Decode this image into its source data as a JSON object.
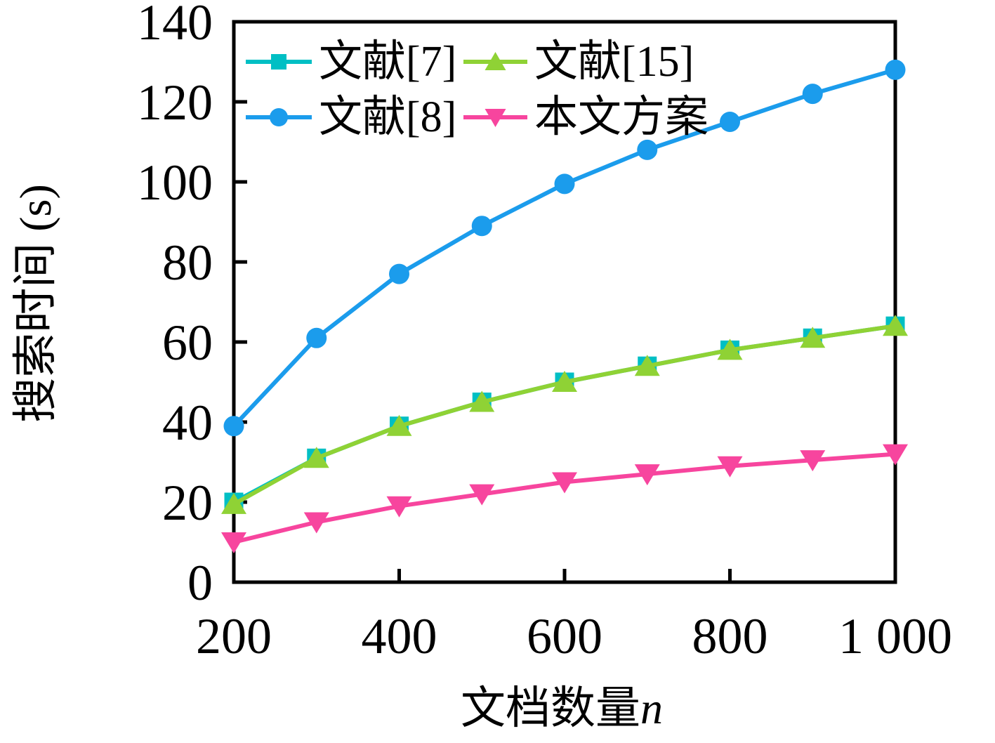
{
  "chart_data": {
    "type": "line",
    "title": "",
    "xlabel": "文档数量n",
    "xlabel_text": "文档数量",
    "xlabel_var": "n",
    "ylabel": "搜索时间 (s)",
    "x": [
      200,
      300,
      400,
      500,
      600,
      700,
      800,
      900,
      1000
    ],
    "xlim": [
      200,
      1000
    ],
    "ylim": [
      0,
      140
    ],
    "x_tick_values": [
      200,
      400,
      600,
      800,
      1000
    ],
    "x_tick_labels": [
      "200",
      "400",
      "600",
      "800",
      "1 000"
    ],
    "y_tick_values": [
      0,
      20,
      40,
      60,
      80,
      100,
      120,
      140
    ],
    "y_tick_labels": [
      "0",
      "20",
      "40",
      "60",
      "80",
      "100",
      "120",
      "140"
    ],
    "grid": false,
    "legend_position": "upper-left-inside",
    "axis_color": "#000000",
    "background_color": "#ffffff",
    "series": [
      {
        "name": "文献[7]",
        "color": "#00BFC4",
        "marker": "square",
        "values": [
          20,
          31,
          39,
          45,
          50,
          54,
          58,
          61,
          64
        ]
      },
      {
        "name": "文献[8]",
        "color": "#1B9CEC",
        "marker": "circle",
        "values": [
          39,
          61,
          77,
          89,
          99.5,
          108,
          115,
          122,
          128
        ]
      },
      {
        "name": "文献[15]",
        "color": "#8FD235",
        "marker": "triangle-up",
        "values": [
          19.5,
          31,
          39,
          45,
          50,
          54,
          58,
          61,
          64
        ]
      },
      {
        "name": "本文方案",
        "color": "#F7459E",
        "marker": "triangle-down",
        "values": [
          10,
          15,
          19,
          22,
          25,
          27,
          29,
          30.5,
          32
        ]
      }
    ],
    "legend_order": [
      0,
      2,
      1,
      3
    ]
  }
}
